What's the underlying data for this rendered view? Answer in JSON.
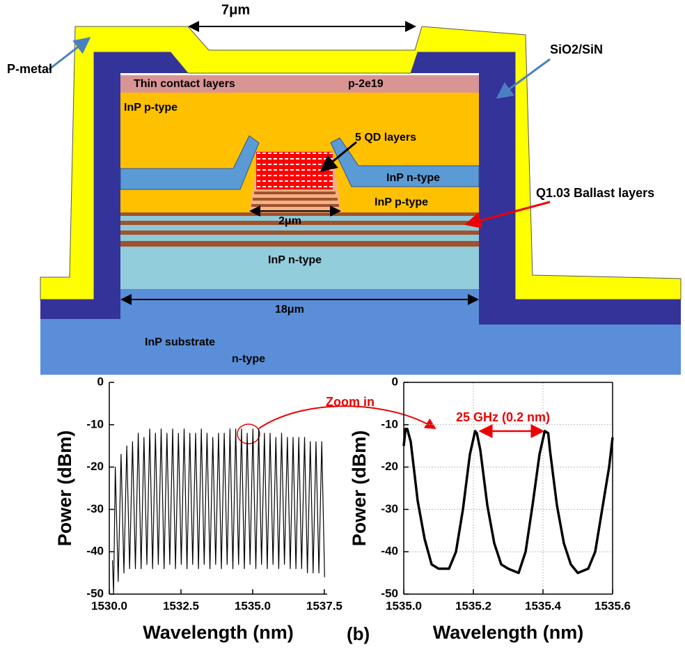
{
  "diagram": {
    "top_width": "7μm",
    "metal_label": "P-metal",
    "passivation_label": "SiO2/SiN",
    "contact_label": "Thin contact layers",
    "doping_label": "p-2e19",
    "upper_p_label": "InP p-type",
    "qd_label": "5 QD layers",
    "wing_n_label": "InP n-type",
    "ballast_label": "Q1.03 Ballast layers",
    "lower_p_label": "InP p-type",
    "mesa_width": "2μm",
    "lower_n_label": "InP n-type",
    "ridge_width": "18μm",
    "substrate_label": "InP substrate",
    "substrate_type": "n-type"
  },
  "panel_label": "(b)",
  "chart_data": [
    {
      "type": "line",
      "x_label": "Wavelength (nm)",
      "y_label": "Power (dBm)",
      "annotation": "Zoom in",
      "color": "#000000",
      "line_width": 1.2,
      "grid": false,
      "xlim": [
        1530,
        1537.6
      ],
      "ylim": [
        -50,
        0
      ],
      "xticks": [
        {
          "value": 1530,
          "label": "1530.0"
        },
        1532.5,
        {
          "value": 1535,
          "label": "1535.0"
        },
        1537.5
      ],
      "yticks": [
        0,
        -10,
        -20,
        -30,
        -40,
        -50
      ],
      "x": [
        1530.11,
        1530.15,
        1530.21,
        1530.31,
        1530.41,
        1530.51,
        1530.61,
        1530.71,
        1530.81,
        1530.91,
        1531.01,
        1531.11,
        1531.21,
        1531.31,
        1531.41,
        1531.51,
        1531.61,
        1531.71,
        1531.81,
        1531.91,
        1532.01,
        1532.11,
        1532.21,
        1532.31,
        1532.41,
        1532.51,
        1532.61,
        1532.71,
        1532.81,
        1532.91,
        1533.01,
        1533.11,
        1533.21,
        1533.31,
        1533.41,
        1533.51,
        1533.61,
        1533.71,
        1533.81,
        1533.91,
        1534.01,
        1534.11,
        1534.21,
        1534.31,
        1534.41,
        1534.51,
        1534.61,
        1534.71,
        1534.81,
        1534.91,
        1535.01,
        1535.11,
        1535.21,
        1535.31,
        1535.41,
        1535.51,
        1535.61,
        1535.71,
        1535.81,
        1535.91,
        1536.01,
        1536.11,
        1536.21,
        1536.31,
        1536.41,
        1536.51,
        1536.61,
        1536.71,
        1536.81,
        1536.91,
        1537.01,
        1537.11,
        1537.21,
        1537.31,
        1537.41,
        1537.51
      ],
      "values": [
        -42,
        -50,
        -20,
        -47,
        -17,
        -45,
        -15,
        -44,
        -14,
        -44,
        -12,
        -44,
        -13,
        -43,
        -11,
        -44,
        -12,
        -43,
        -11,
        -44,
        -12,
        -43,
        -11,
        -44,
        -12,
        -43,
        -11,
        -44,
        -12,
        -43,
        -12,
        -44,
        -11,
        -43,
        -12,
        -44,
        -13,
        -43,
        -12,
        -44,
        -12,
        -43,
        -11,
        -44,
        -11,
        -43,
        -11,
        -44,
        -12,
        -43,
        -11,
        -44,
        -11,
        -43,
        -12,
        -44,
        -12,
        -43,
        -13,
        -44,
        -12,
        -43,
        -13,
        -44,
        -13,
        -44,
        -13,
        -44,
        -13,
        -45,
        -14,
        -45,
        -14,
        -45,
        -14,
        -46
      ]
    },
    {
      "type": "line",
      "x_label": "Wavelength (nm)",
      "y_label": "Power (dBm)",
      "annotation": "25 GHz (0.2 nm)",
      "color": "#000000",
      "line_width": 3.5,
      "grid": true,
      "xlim": [
        1535.0,
        1535.6
      ],
      "ylim": [
        -50,
        0
      ],
      "xticks": [
        {
          "value": 1535.0,
          "label": "1535.0"
        },
        1535.2,
        1535.4,
        1535.6
      ],
      "yticks": [
        0,
        -10,
        -20,
        -30,
        -40,
        -50
      ],
      "x": [
        1535.0,
        1535.005,
        1535.01,
        1535.02,
        1535.04,
        1535.06,
        1535.08,
        1535.1,
        1535.13,
        1535.15,
        1535.17,
        1535.19,
        1535.205,
        1535.21,
        1535.22,
        1535.24,
        1535.26,
        1535.28,
        1535.3,
        1535.33,
        1535.35,
        1535.37,
        1535.39,
        1535.405,
        1535.415,
        1535.42,
        1535.44,
        1535.46,
        1535.48,
        1535.5,
        1535.53,
        1535.55,
        1535.57,
        1535.59,
        1535.6
      ],
      "values": [
        -15,
        -11,
        -11,
        -14,
        -28,
        -37,
        -43,
        -44,
        -44,
        -40,
        -30,
        -17,
        -11.5,
        -12,
        -16,
        -29,
        -38,
        -43,
        -44,
        -45,
        -40,
        -29,
        -17,
        -11.5,
        -12,
        -16,
        -29,
        -38,
        -43,
        -45,
        -44,
        -40,
        -30,
        -20,
        -13
      ]
    }
  ]
}
